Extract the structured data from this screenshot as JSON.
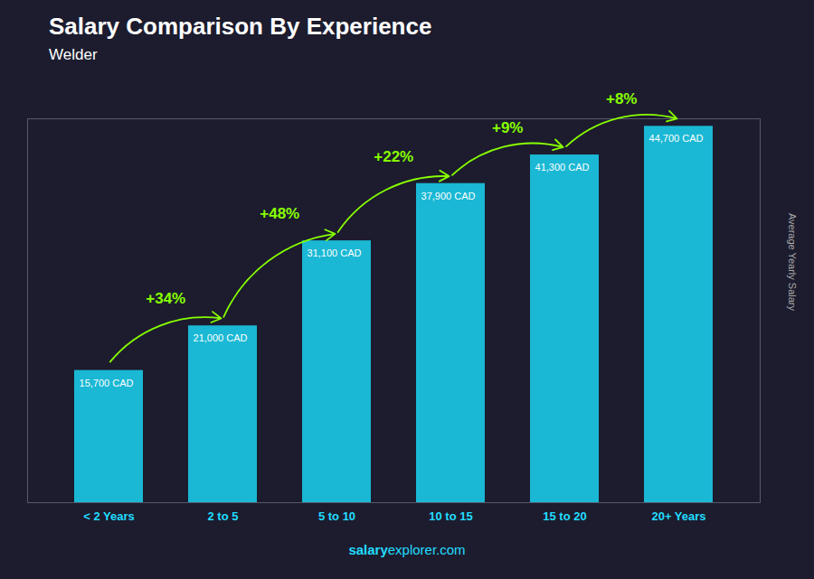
{
  "chart_data": {
    "type": "bar",
    "title": "Salary Comparison By Experience",
    "subtitle": "Welder",
    "categories": [
      "< 2 Years",
      "2 to 5",
      "5 to 10",
      "10 to 15",
      "15 to 20",
      "20+ Years"
    ],
    "values": [
      15700,
      21000,
      31100,
      37900,
      41300,
      44700
    ],
    "value_labels": [
      "15,700 CAD",
      "21,000 CAD",
      "31,100 CAD",
      "37,900 CAD",
      "41,300 CAD",
      "44,700 CAD"
    ],
    "data_labels": true,
    "color": "#1ab8d4",
    "ylabel": "Average Yearly Salary",
    "ylim": [
      0,
      45594
    ],
    "tick_labels": "x",
    "grid": false,
    "annotations": [
      {
        "text": "+34%",
        "from": "< 2 Years",
        "to": "2 to 5"
      },
      {
        "text": "+48%",
        "from": "2 to 5",
        "to": "5 to 10"
      },
      {
        "text": "+22%",
        "from": "5 to 10",
        "to": "10 to 15"
      },
      {
        "text": "+9%",
        "from": "10 to 15",
        "to": "15 to 20"
      },
      {
        "text": "+8%",
        "from": "15 to 20",
        "to": "20+ Years"
      }
    ],
    "caption": [
      "salary",
      "explorer.com"
    ]
  }
}
